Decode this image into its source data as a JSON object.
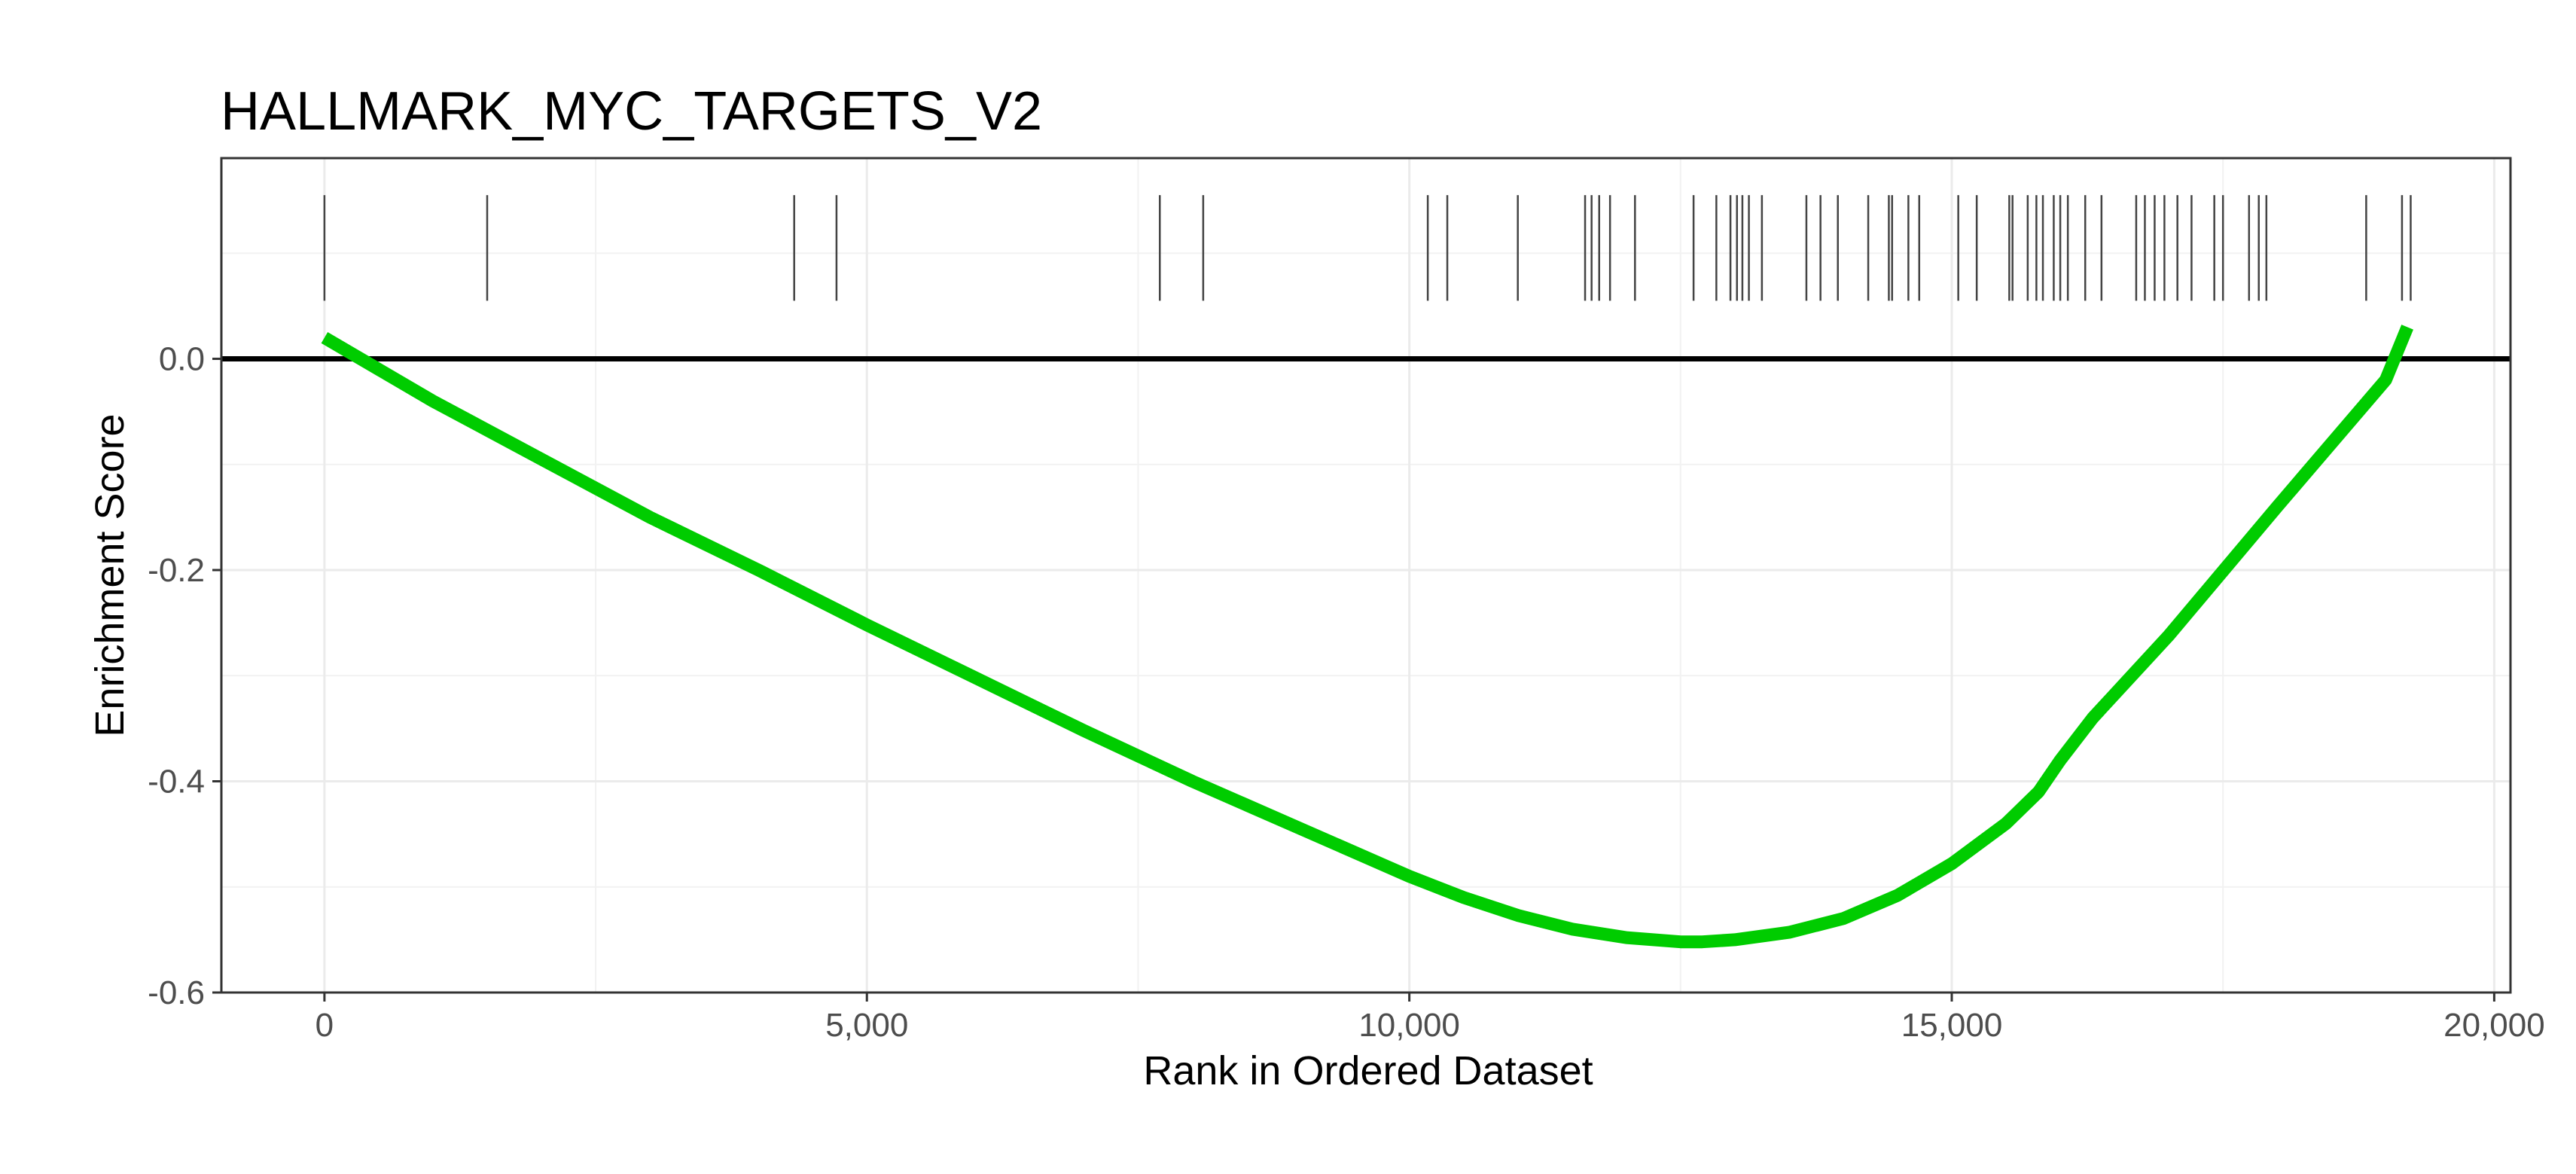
{
  "chart_data": {
    "type": "line",
    "title": "HALLMARK_MYC_TARGETS_V2",
    "xlabel": "Rank in Ordered Dataset",
    "ylabel": "Enrichment Score",
    "xlim": [
      -950,
      20150
    ],
    "ylim": [
      -0.6,
      0.19
    ],
    "x_ticks": [
      0,
      5000,
      10000,
      15000,
      20000
    ],
    "x_tick_labels": [
      "0",
      "5,000",
      "10,000",
      "15,000",
      "20,000"
    ],
    "y_ticks": [
      0.0,
      -0.2,
      -0.4,
      -0.6
    ],
    "y_tick_labels": [
      "0.0",
      "-0.2",
      "-0.4",
      "-0.6"
    ],
    "grid": true,
    "reference_line_y": 0.0,
    "series": [
      {
        "color": "#00cc00",
        "x": [
          0,
          500,
          1000,
          2000,
          3000,
          4000,
          5000,
          6000,
          7000,
          8000,
          9000,
          10000,
          10500,
          11000,
          11500,
          12000,
          12500,
          12700,
          13000,
          13500,
          14000,
          14500,
          15000,
          15500,
          15800,
          16000,
          16300,
          17000,
          18000,
          19000,
          19200
        ],
        "y": [
          0.02,
          -0.01,
          -0.04,
          -0.095,
          -0.15,
          -0.2,
          -0.252,
          -0.302,
          -0.352,
          -0.4,
          -0.445,
          -0.49,
          -0.51,
          -0.527,
          -0.54,
          -0.548,
          -0.552,
          -0.552,
          -0.55,
          -0.543,
          -0.53,
          -0.508,
          -0.478,
          -0.44,
          -0.41,
          -0.38,
          -0.34,
          -0.262,
          -0.14,
          -0.02,
          0.03
        ]
      }
    ],
    "gene_hits": [
      0,
      1500,
      4330,
      4720,
      7700,
      8100,
      10170,
      10350,
      11000,
      11620,
      11680,
      11750,
      11850,
      12080,
      12620,
      12830,
      12960,
      13020,
      13070,
      13130,
      13250,
      13660,
      13790,
      13950,
      14230,
      14420,
      14450,
      14600,
      14700,
      15060,
      15230,
      15530,
      15560,
      15700,
      15780,
      15840,
      15940,
      16000,
      16070,
      16230,
      16380,
      16700,
      16780,
      16870,
      16960,
      17080,
      17210,
      17420,
      17500,
      17740,
      17830,
      17900,
      18820,
      19150,
      19230
    ]
  }
}
